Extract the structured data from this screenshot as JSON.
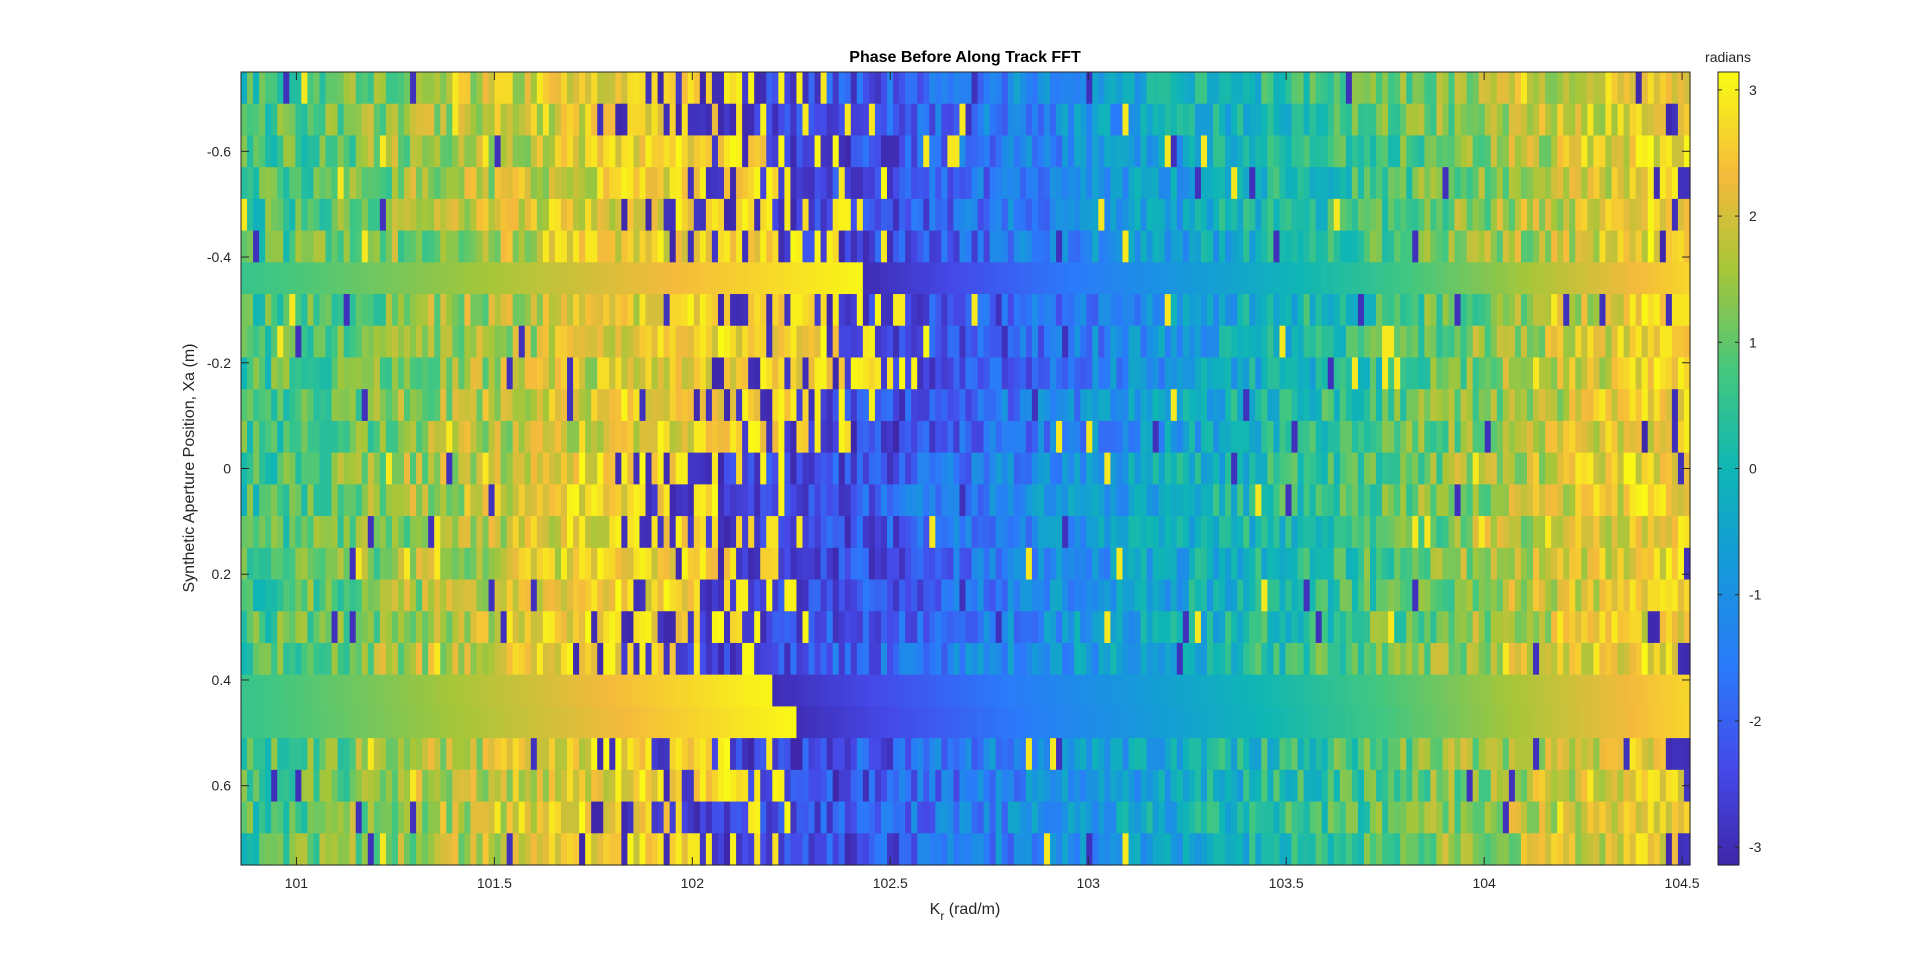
{
  "chart_data": {
    "type": "heatmap",
    "title": "Phase Before Along Track FFT",
    "xlabel_main": "K",
    "xlabel_sub": "r",
    "xlabel_unit": " (rad/m)",
    "ylabel": "Synthetic Aperture Position, Xa (m)",
    "colorbar_label": "radians",
    "colormap": "parula",
    "xlim": [
      100.86,
      104.52
    ],
    "ylim": [
      -0.75,
      0.75
    ],
    "y_reversed": true,
    "clim": [
      -3.14159,
      3.14159
    ],
    "x_ticks": [
      101,
      101.5,
      102,
      102.5,
      103,
      103.5,
      104,
      104.5
    ],
    "x_tick_labels": [
      "101",
      "101.5",
      "102",
      "102.5",
      "103",
      "103.5",
      "104",
      "104.5"
    ],
    "y_ticks": [
      -0.6,
      -0.4,
      -0.2,
      0,
      0.2,
      0.4,
      0.6
    ],
    "y_tick_labels": [
      "-0.6",
      "-0.4",
      "-0.2",
      "0",
      "0.2",
      "0.4",
      "0.6"
    ],
    "colorbar_ticks": [
      -3,
      -2,
      -1,
      0,
      1,
      2,
      3
    ],
    "colorbar_tick_labels": [
      "-3",
      "-2",
      "-1",
      "0",
      "1",
      "2",
      "3"
    ],
    "rows": 25,
    "columns": 240,
    "phase_model": {
      "yellow_edge_row_profile": [
        102.05,
        102.13,
        102.2,
        102.22,
        102.2,
        102.27,
        102.43,
        102.38,
        102.42,
        102.45,
        102.25,
        102.3,
        102.05,
        102.0,
        102.1,
        102.15,
        102.12,
        102.03,
        101.95,
        102.2,
        102.25,
        102.03,
        102.1,
        102.0,
        102.08
      ],
      "smooth_rows": [
        6,
        19,
        20
      ]
    },
    "grid": false,
    "legend": "none"
  }
}
